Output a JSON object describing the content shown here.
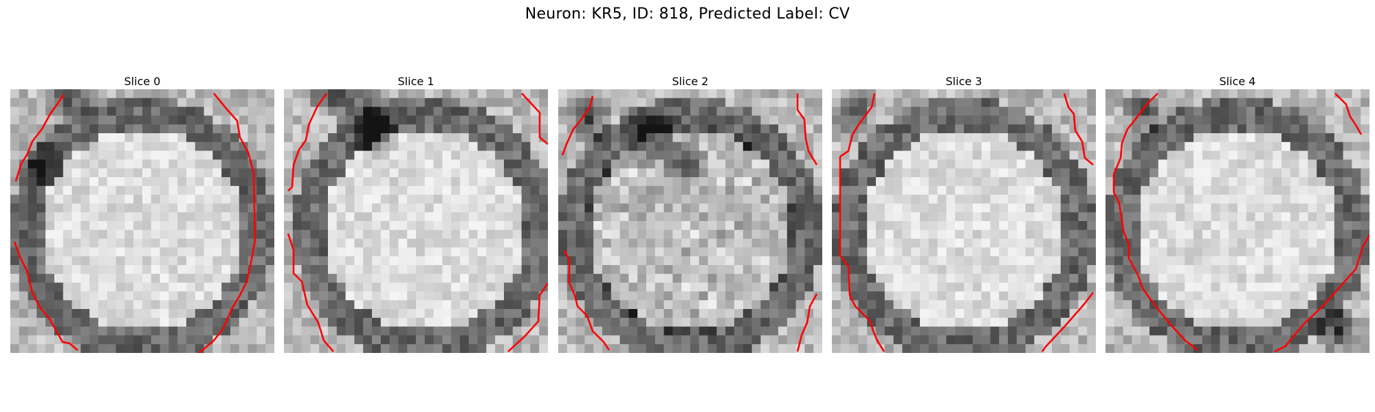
{
  "figure": {
    "title": "Neuron: KR5, ID: 818, Predicted Label: CV"
  },
  "colors": {
    "contour": "#ff0000",
    "background": "#ffffff"
  },
  "panels": [
    {
      "title": "Slice 0"
    },
    {
      "title": "Slice 1"
    },
    {
      "title": "Slice 2"
    },
    {
      "title": "Slice 3"
    },
    {
      "title": "Slice 4"
    }
  ]
}
